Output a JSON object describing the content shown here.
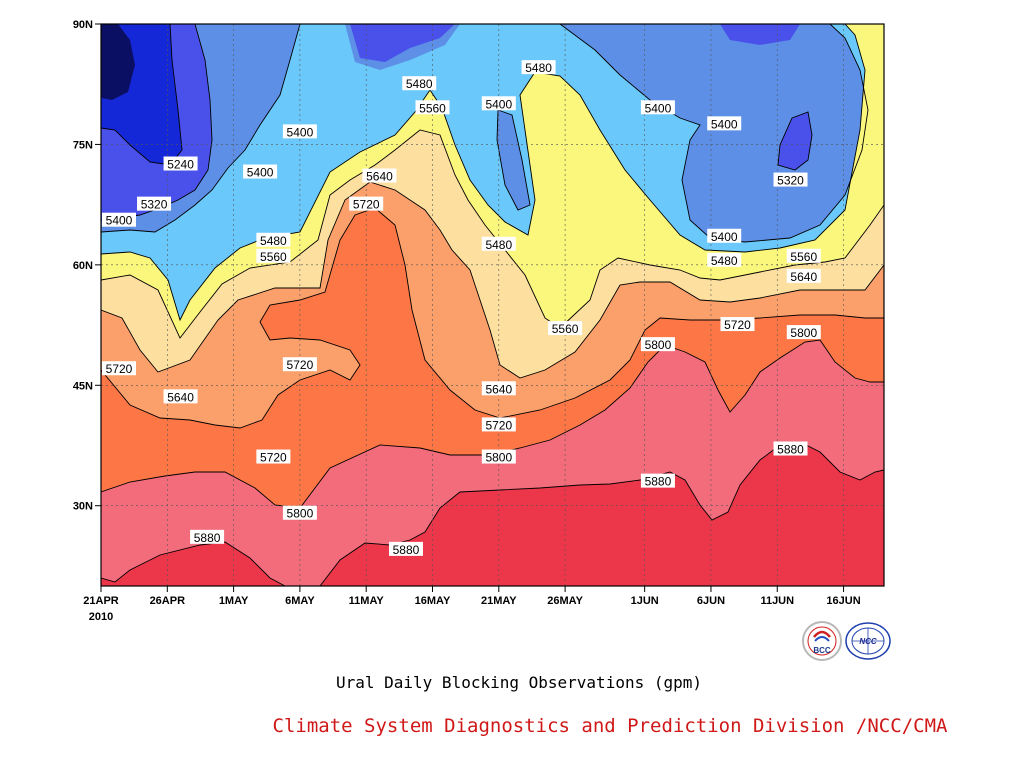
{
  "chart_data": {
    "type": "contour",
    "title": "",
    "xlabel": "",
    "ylabel": "",
    "x_ticks": [
      "21APR",
      "26APR",
      "1MAY",
      "6MAY",
      "11MAY",
      "16MAY",
      "21MAY",
      "26MAY",
      "1JUN",
      "6JUN",
      "11JUN",
      "16JUN"
    ],
    "x_year_label": "2010",
    "y_ticks": [
      "90N",
      "75N",
      "60N",
      "45N",
      "30N"
    ],
    "ylim": [
      20,
      90
    ],
    "grid": true,
    "units": "gpm",
    "levels": [
      5240,
      5320,
      5400,
      5480,
      5560,
      5640,
      5720,
      5800,
      5880
    ],
    "level_colors": [
      "#0b0f63",
      "#1528d8",
      "#4a50ea",
      "#5d8fe6",
      "#6ac8fb",
      "#fbf77d",
      "#fde0a0",
      "#fca06b",
      "#fc7646",
      "#f26c7c",
      "#ec374a"
    ],
    "contour_labels": [
      {
        "value": "5480",
        "date": "15MAY",
        "lat": 82.5
      },
      {
        "value": "5480",
        "date": "24MAY",
        "lat": 84.5
      },
      {
        "value": "5560",
        "date": "16MAY",
        "lat": 79.5
      },
      {
        "value": "5400",
        "date": "21MAY",
        "lat": 80
      },
      {
        "value": "5400",
        "date": "2JUN",
        "lat": 79.5
      },
      {
        "value": "5400",
        "date": "7JUN",
        "lat": 77.5
      },
      {
        "value": "5400",
        "date": "6MAY",
        "lat": 76.5
      },
      {
        "value": "5240",
        "date": "27APR",
        "lat": 72.5
      },
      {
        "value": "5400",
        "date": "3MAY",
        "lat": 71.5
      },
      {
        "value": "5640",
        "date": "12MAY",
        "lat": 71
      },
      {
        "value": "5320",
        "date": "12JUN",
        "lat": 70.5
      },
      {
        "value": "5320",
        "date": "25APR",
        "lat": 67.5
      },
      {
        "value": "5720",
        "date": "11MAY",
        "lat": 67.5
      },
      {
        "value": "5400",
        "date": "22APR",
        "lat": 65.5
      },
      {
        "value": "5400",
        "date": "7JUN",
        "lat": 63.5
      },
      {
        "value": "5480",
        "date": "4MAY",
        "lat": 63
      },
      {
        "value": "5480",
        "date": "21MAY",
        "lat": 62.5
      },
      {
        "value": "5560",
        "date": "4MAY",
        "lat": 61
      },
      {
        "value": "5480",
        "date": "7JUN",
        "lat": 60.5
      },
      {
        "value": "5560",
        "date": "13JUN",
        "lat": 61
      },
      {
        "value": "5640",
        "date": "13JUN",
        "lat": 58.5
      },
      {
        "value": "5560",
        "date": "26MAY",
        "lat": 52
      },
      {
        "value": "5720",
        "date": "8JUN",
        "lat": 52.5
      },
      {
        "value": "5800",
        "date": "13JUN",
        "lat": 51.5
      },
      {
        "value": "5800",
        "date": "2JUN",
        "lat": 50
      },
      {
        "value": "5720",
        "date": "21APR",
        "lat": 47
      },
      {
        "value": "5720",
        "date": "6MAY",
        "lat": 47.5
      },
      {
        "value": "5640",
        "date": "21MAY",
        "lat": 44.5
      },
      {
        "value": "5640",
        "date": "27APR",
        "lat": 43.5
      },
      {
        "value": "5720",
        "date": "21MAY",
        "lat": 40
      },
      {
        "value": "5720",
        "date": "4MAY",
        "lat": 36
      },
      {
        "value": "5800",
        "date": "21MAY",
        "lat": 36
      },
      {
        "value": "5880",
        "date": "2JUN",
        "lat": 33
      },
      {
        "value": "5880",
        "date": "12JUN",
        "lat": 37
      },
      {
        "value": "5800",
        "date": "6MAY",
        "lat": 29
      },
      {
        "value": "5880",
        "date": "29APR",
        "lat": 26
      },
      {
        "value": "5880",
        "date": "14MAY",
        "lat": 24.5
      }
    ]
  },
  "caption": "Ural Daily Blocking Observations (gpm)",
  "credit": "Climate System Diagnostics and Prediction Division /NCC/CMA",
  "logos": {
    "bcc_text": "BCC",
    "ncc_text": "NCC"
  }
}
